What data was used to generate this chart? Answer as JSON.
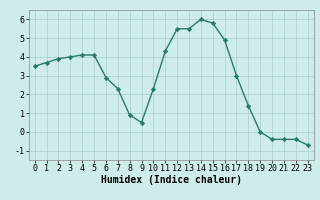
{
  "x": [
    0,
    1,
    2,
    3,
    4,
    5,
    6,
    7,
    8,
    9,
    10,
    11,
    12,
    13,
    14,
    15,
    16,
    17,
    18,
    19,
    20,
    21,
    22,
    23
  ],
  "y": [
    3.5,
    3.7,
    3.9,
    4.0,
    4.1,
    4.1,
    2.9,
    2.3,
    0.9,
    0.5,
    2.3,
    4.3,
    5.5,
    5.5,
    6.0,
    5.8,
    4.9,
    3.0,
    1.4,
    0.0,
    -0.4,
    -0.4,
    -0.4,
    -0.7
  ],
  "line_color": "#2a7a6a",
  "marker": "D",
  "marker_size": 2.2,
  "bg_color": "#ceecea",
  "grid_color": "#aed4d0",
  "xlabel": "Humidex (Indice chaleur)",
  "xlim": [
    -0.5,
    23.5
  ],
  "ylim": [
    -1.5,
    6.5
  ],
  "yticks": [
    -1,
    0,
    1,
    2,
    3,
    4,
    5,
    6
  ],
  "xtick_labels": [
    "0",
    "1",
    "2",
    "3",
    "4",
    "5",
    "6",
    "7",
    "8",
    "9",
    "10",
    "11",
    "12",
    "13",
    "14",
    "15",
    "16",
    "17",
    "18",
    "19",
    "20",
    "21",
    "22",
    "23"
  ],
  "label_fontsize": 7,
  "tick_fontsize": 6
}
